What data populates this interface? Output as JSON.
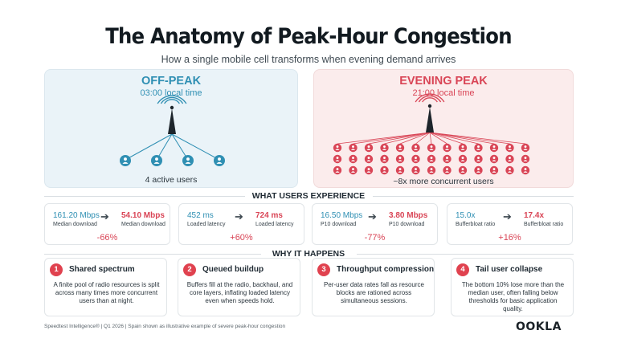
{
  "header": {
    "title": "The Anatomy of Peak-Hour Congestion",
    "subtitle": "How a single mobile cell transforms when evening demand arrives"
  },
  "colors": {
    "offpeak": "#2f8fb3",
    "peak": "#d94556",
    "badge": "#e0424f",
    "offpeak_bg": "#eaf3f8",
    "peak_bg": "#fbecec"
  },
  "offpeak": {
    "label": "OFF-PEAK",
    "time": "03:00 local time",
    "caption": "4 active users",
    "user_count": 4,
    "icons": [
      "cell-tower-icon",
      "user-icon"
    ]
  },
  "peak": {
    "label": "EVENING PEAK",
    "time": "21:00 local time",
    "caption": "~8x more concurrent users",
    "user_rows": 3,
    "user_cols": 13,
    "icons": [
      "cell-tower-icon",
      "user-icon"
    ]
  },
  "experience": {
    "heading": "WHAT USERS EXPERIENCE",
    "metrics": [
      {
        "from_value": "161.20 Mbps",
        "from_label": "Median download",
        "to_value": "54.10 Mbps",
        "to_label": "Median download",
        "delta": "-66%"
      },
      {
        "from_value": "452 ms",
        "from_label": "Loaded latency",
        "to_value": "724 ms",
        "to_label": "Loaded latency",
        "delta": "+60%"
      },
      {
        "from_value": "16.50 Mbps",
        "from_label": "P10 download",
        "to_value": "3.80 Mbps",
        "to_label": "P10 download",
        "delta": "-77%"
      },
      {
        "from_value": "15.0x",
        "from_label": "Bufferbloat ratio",
        "to_value": "17.4x",
        "to_label": "Bufferbloat ratio",
        "delta": "+16%"
      }
    ]
  },
  "why": {
    "heading": "WHY IT HAPPENS",
    "cards": [
      {
        "num": "1",
        "title": "Shared spectrum",
        "body": "A finite pool of radio resources is split across many times more concurrent users than at night."
      },
      {
        "num": "2",
        "title": "Queued buildup",
        "body": "Buffers fill at the radio, backhaul, and core layers, inflating loaded latency even when speeds hold."
      },
      {
        "num": "3",
        "title": "Throughput compression",
        "body": "Per-user data rates fall as resource blocks are rationed across simultaneous sessions."
      },
      {
        "num": "4",
        "title": "Tail user collapse",
        "body": "The bottom 10% lose more than the median user, often falling below thresholds for basic application quality."
      }
    ]
  },
  "footer": {
    "note": "Speedtest Intelligence®  |  Q1 2026  |  Spain shown as illustrative example of severe peak-hour congestion",
    "logo": "OOKLA"
  }
}
